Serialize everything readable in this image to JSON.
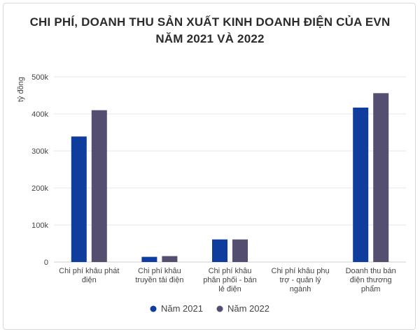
{
  "chart_data": {
    "type": "bar",
    "title_lines": [
      "CHI PHÍ, DOANH THU SẢN XUẤT KINH DOANH ĐIỆN CỦA EVN",
      "NĂM 2021 VÀ 2022"
    ],
    "ylabel": "tỷ đồng",
    "xlabel": "",
    "ylim": [
      0,
      500000
    ],
    "yticks": [
      0,
      100000,
      200000,
      300000,
      400000,
      500000
    ],
    "ytick_labels": [
      "0",
      "100k",
      "200k",
      "300k",
      "400k",
      "500k"
    ],
    "grid": true,
    "legend_position": "bottom",
    "categories": [
      [
        "Chi phí khâu phát",
        "điện"
      ],
      [
        "Chi phí khâu",
        "truyền tải điện"
      ],
      [
        "Chi phí khâu",
        "phân phối - bán",
        "lẻ điện"
      ],
      [
        "Chi phí khâu phụ",
        "trợ - quản lý",
        "ngành"
      ],
      [
        "Doanh thu bán",
        "điện thương",
        "phẩm"
      ]
    ],
    "series": [
      {
        "name": "Năm 2021",
        "color": "#0f3d9e",
        "values": [
          339000,
          14000,
          61000,
          0,
          417000
        ]
      },
      {
        "name": "Năm 2022",
        "color": "#544f70",
        "values": [
          410000,
          16000,
          61000,
          0,
          456000
        ]
      }
    ]
  }
}
